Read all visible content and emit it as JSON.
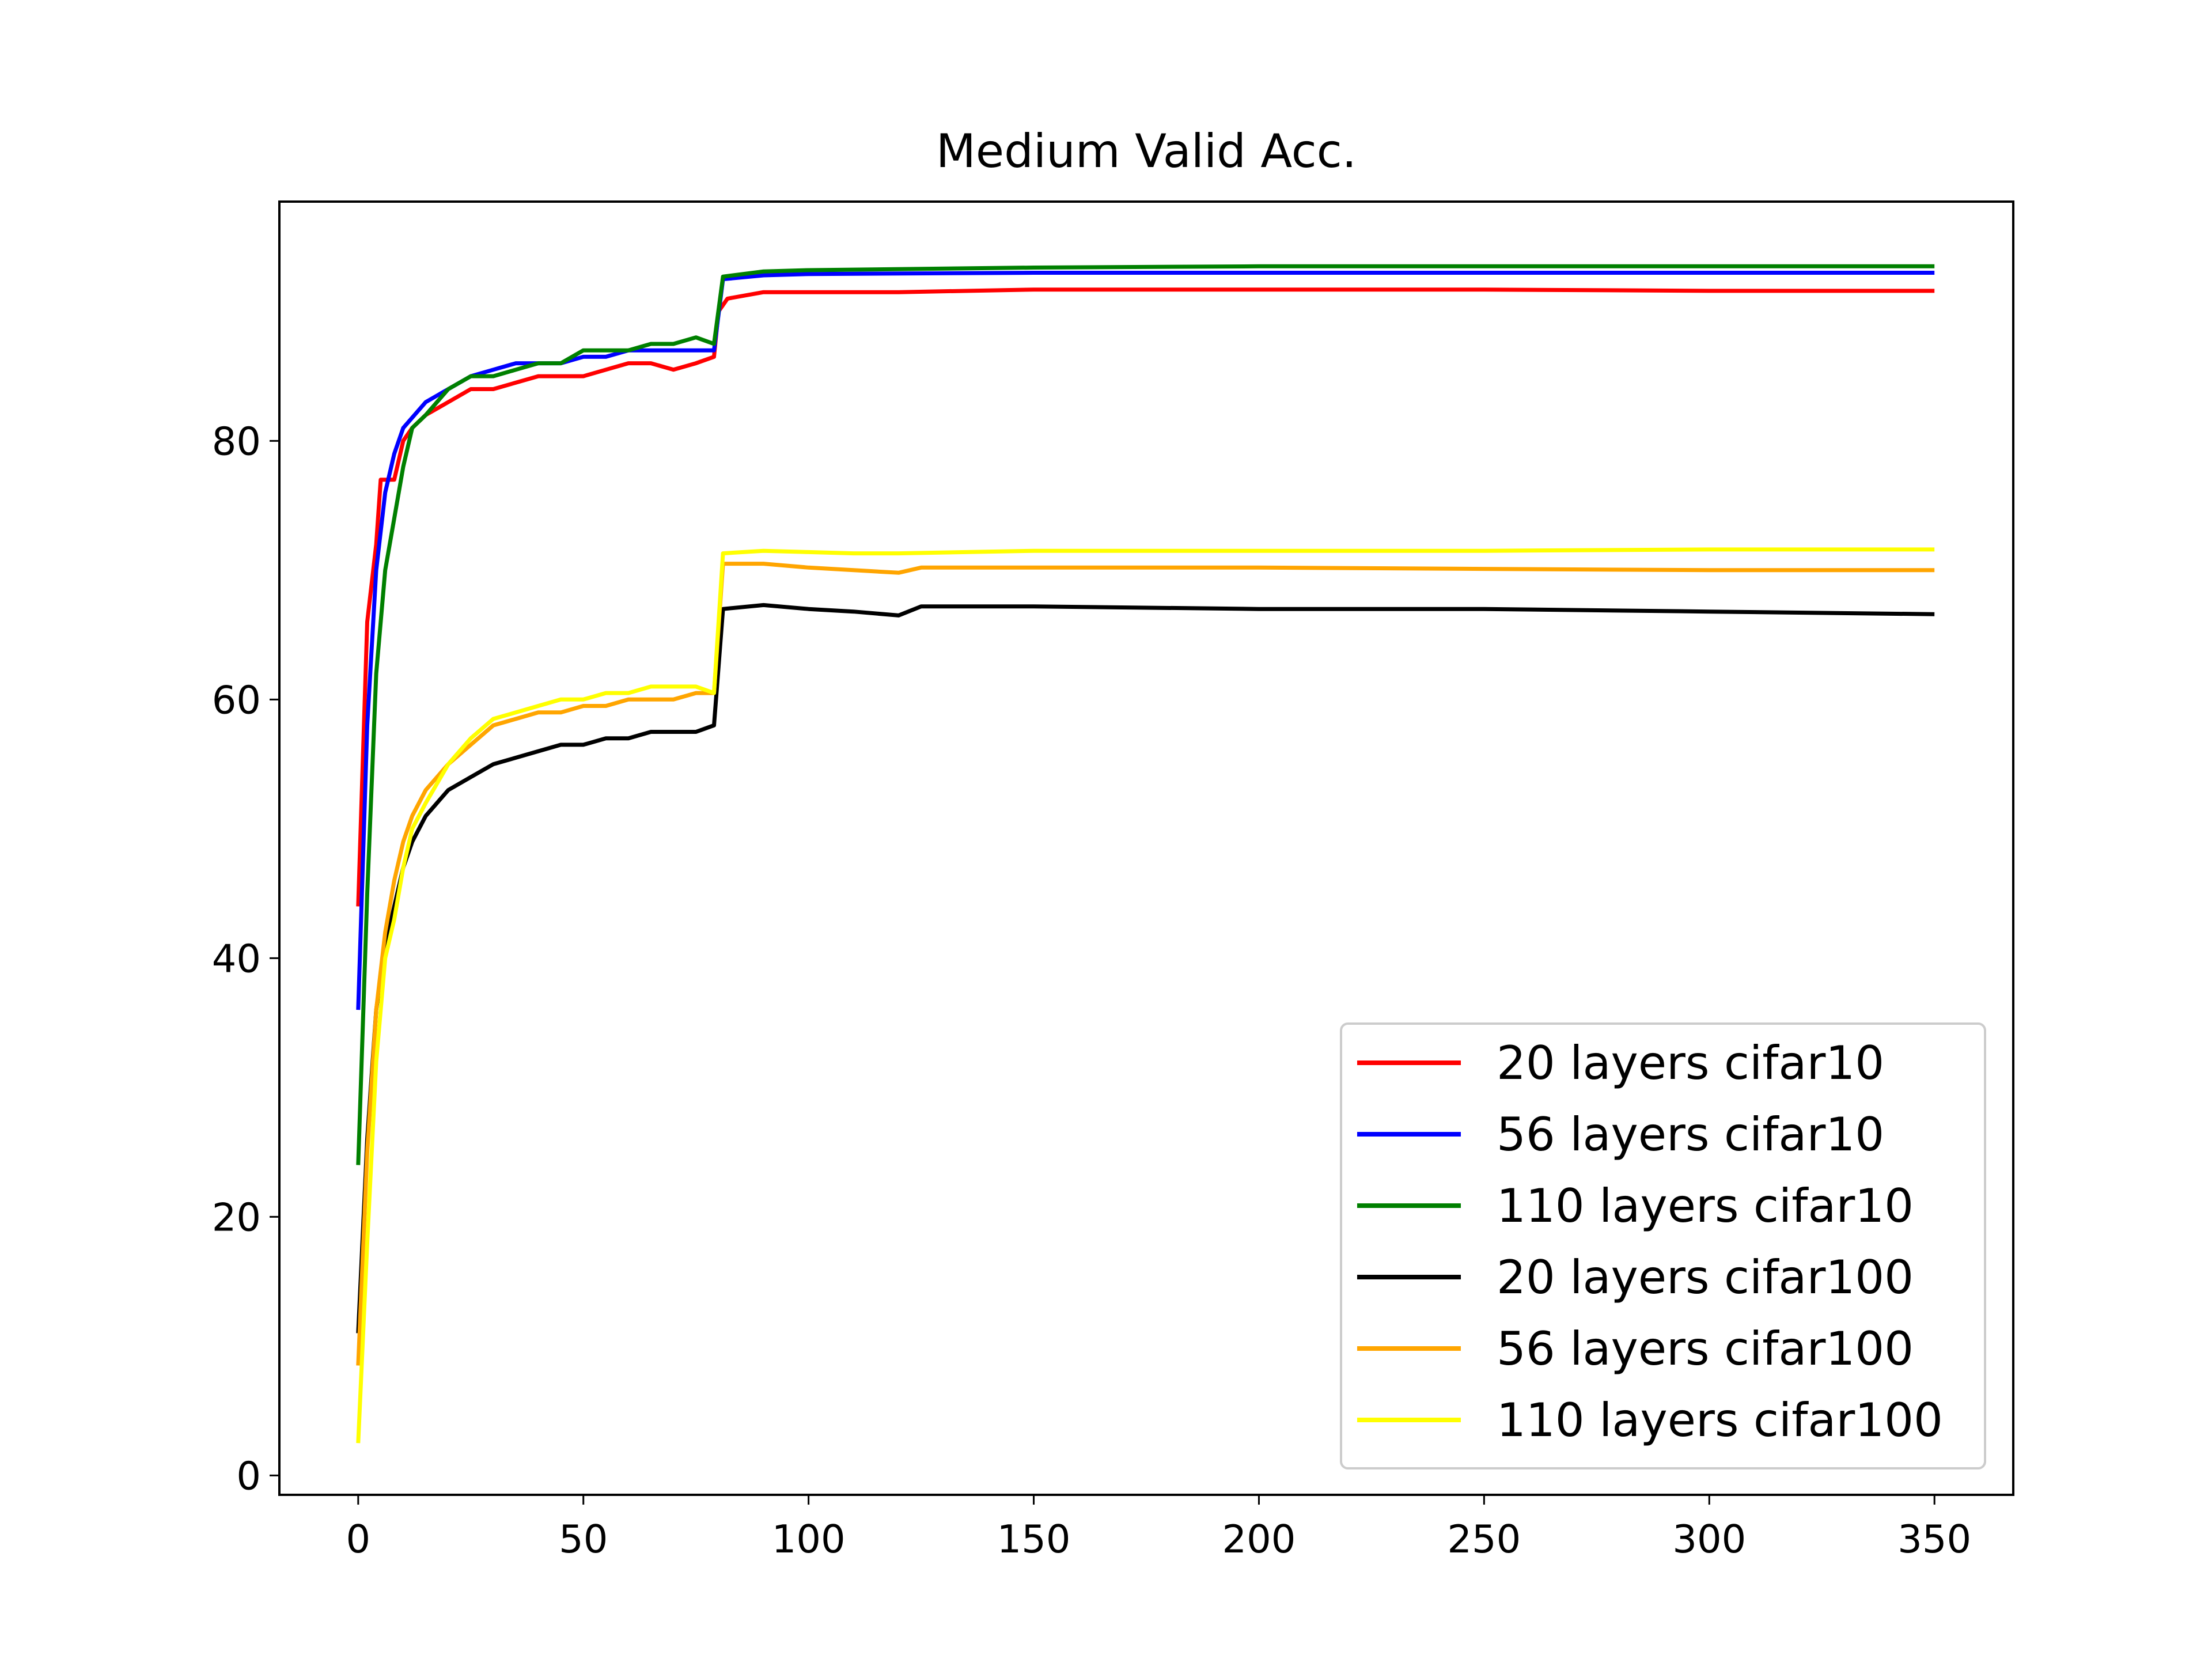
{
  "chart_data": {
    "type": "line",
    "title": "Medium Valid Acc.",
    "xlabel": "",
    "ylabel": "",
    "xlim": [
      -17.5,
      367.5
    ],
    "ylim": [
      -1.5,
      98.5
    ],
    "xticks": [
      0,
      50,
      100,
      150,
      200,
      250,
      300,
      350
    ],
    "yticks": [
      0,
      20,
      40,
      60,
      80
    ],
    "grid": false,
    "legend": {
      "position": "lower-right"
    },
    "series": [
      {
        "name": "20 layers cifar10",
        "color": "#ff0000",
        "points": [
          [
            0,
            44
          ],
          [
            2,
            66
          ],
          [
            4,
            72
          ],
          [
            5,
            77
          ],
          [
            8,
            77
          ],
          [
            10,
            80
          ],
          [
            12,
            81
          ],
          [
            15,
            82
          ],
          [
            20,
            83
          ],
          [
            25,
            84
          ],
          [
            30,
            84
          ],
          [
            35,
            84.5
          ],
          [
            40,
            85
          ],
          [
            45,
            85
          ],
          [
            50,
            85
          ],
          [
            55,
            85.5
          ],
          [
            60,
            86
          ],
          [
            65,
            86
          ],
          [
            70,
            85.5
          ],
          [
            75,
            86
          ],
          [
            79,
            86.5
          ],
          [
            80,
            90
          ],
          [
            82,
            91
          ],
          [
            90,
            91.5
          ],
          [
            100,
            91.5
          ],
          [
            110,
            91.5
          ],
          [
            120,
            91.5
          ],
          [
            150,
            91.7
          ],
          [
            200,
            91.7
          ],
          [
            250,
            91.7
          ],
          [
            300,
            91.6
          ],
          [
            350,
            91.6
          ]
        ]
      },
      {
        "name": "56 layers cifar10",
        "color": "#0000ff",
        "points": [
          [
            0,
            36
          ],
          [
            2,
            58
          ],
          [
            4,
            70
          ],
          [
            6,
            76
          ],
          [
            8,
            79
          ],
          [
            10,
            81
          ],
          [
            15,
            83
          ],
          [
            20,
            84
          ],
          [
            25,
            85
          ],
          [
            30,
            85.5
          ],
          [
            35,
            86
          ],
          [
            40,
            86
          ],
          [
            45,
            86
          ],
          [
            50,
            86.5
          ],
          [
            55,
            86.5
          ],
          [
            60,
            87
          ],
          [
            65,
            87
          ],
          [
            70,
            87
          ],
          [
            75,
            87
          ],
          [
            79,
            87
          ],
          [
            81,
            92.5
          ],
          [
            90,
            92.8
          ],
          [
            100,
            92.9
          ],
          [
            150,
            93
          ],
          [
            200,
            93
          ],
          [
            250,
            93
          ],
          [
            300,
            93
          ],
          [
            350,
            93
          ]
        ]
      },
      {
        "name": "110 layers cifar10",
        "color": "#008000",
        "points": [
          [
            0,
            24
          ],
          [
            2,
            45
          ],
          [
            4,
            62
          ],
          [
            6,
            70
          ],
          [
            8,
            74
          ],
          [
            10,
            78
          ],
          [
            12,
            81
          ],
          [
            15,
            82
          ],
          [
            20,
            84
          ],
          [
            25,
            85
          ],
          [
            30,
            85
          ],
          [
            35,
            85.5
          ],
          [
            40,
            86
          ],
          [
            45,
            86
          ],
          [
            50,
            87
          ],
          [
            55,
            87
          ],
          [
            60,
            87
          ],
          [
            65,
            87.5
          ],
          [
            70,
            87.5
          ],
          [
            75,
            88
          ],
          [
            79,
            87.5
          ],
          [
            81,
            92.7
          ],
          [
            90,
            93.1
          ],
          [
            100,
            93.2
          ],
          [
            150,
            93.4
          ],
          [
            200,
            93.5
          ],
          [
            250,
            93.5
          ],
          [
            300,
            93.5
          ],
          [
            350,
            93.5
          ]
        ]
      },
      {
        "name": "20 layers cifar100",
        "color": "#000000",
        "points": [
          [
            0,
            11
          ],
          [
            2,
            26
          ],
          [
            4,
            36
          ],
          [
            6,
            41
          ],
          [
            8,
            44
          ],
          [
            10,
            47
          ],
          [
            12,
            49
          ],
          [
            15,
            51
          ],
          [
            20,
            53
          ],
          [
            25,
            54
          ],
          [
            30,
            55
          ],
          [
            35,
            55.5
          ],
          [
            40,
            56
          ],
          [
            45,
            56.5
          ],
          [
            50,
            56.5
          ],
          [
            55,
            57
          ],
          [
            60,
            57
          ],
          [
            65,
            57.5
          ],
          [
            70,
            57.5
          ],
          [
            75,
            57.5
          ],
          [
            79,
            58
          ],
          [
            81,
            67
          ],
          [
            90,
            67.3
          ],
          [
            100,
            67
          ],
          [
            110,
            66.8
          ],
          [
            120,
            66.5
          ],
          [
            125,
            67.2
          ],
          [
            150,
            67.2
          ],
          [
            200,
            67
          ],
          [
            250,
            67
          ],
          [
            300,
            66.8
          ],
          [
            350,
            66.6
          ]
        ]
      },
      {
        "name": "56 layers cifar100",
        "color": "#ffa500",
        "points": [
          [
            0,
            8.5
          ],
          [
            2,
            25
          ],
          [
            4,
            36
          ],
          [
            6,
            42
          ],
          [
            8,
            46
          ],
          [
            10,
            49
          ],
          [
            12,
            51
          ],
          [
            15,
            53
          ],
          [
            20,
            55
          ],
          [
            25,
            56.5
          ],
          [
            30,
            58
          ],
          [
            35,
            58.5
          ],
          [
            40,
            59
          ],
          [
            45,
            59
          ],
          [
            50,
            59.5
          ],
          [
            55,
            59.5
          ],
          [
            60,
            60
          ],
          [
            65,
            60
          ],
          [
            70,
            60
          ],
          [
            75,
            60.5
          ],
          [
            79,
            60.5
          ],
          [
            81,
            70.5
          ],
          [
            90,
            70.5
          ],
          [
            100,
            70.2
          ],
          [
            110,
            70
          ],
          [
            120,
            69.8
          ],
          [
            125,
            70.2
          ],
          [
            150,
            70.2
          ],
          [
            200,
            70.2
          ],
          [
            250,
            70.1
          ],
          [
            300,
            70
          ],
          [
            350,
            70
          ]
        ]
      },
      {
        "name": "110 layers cifar100",
        "color": "#ffff00",
        "points": [
          [
            0,
            2.5
          ],
          [
            2,
            18
          ],
          [
            4,
            32
          ],
          [
            6,
            40
          ],
          [
            8,
            43
          ],
          [
            10,
            47
          ],
          [
            12,
            50
          ],
          [
            15,
            52
          ],
          [
            20,
            55
          ],
          [
            25,
            57
          ],
          [
            30,
            58.5
          ],
          [
            35,
            59
          ],
          [
            40,
            59.5
          ],
          [
            45,
            60
          ],
          [
            50,
            60
          ],
          [
            55,
            60.5
          ],
          [
            60,
            60.5
          ],
          [
            65,
            61
          ],
          [
            70,
            61
          ],
          [
            75,
            61
          ],
          [
            79,
            60.5
          ],
          [
            81,
            71.3
          ],
          [
            90,
            71.5
          ],
          [
            100,
            71.4
          ],
          [
            110,
            71.3
          ],
          [
            120,
            71.3
          ],
          [
            150,
            71.5
          ],
          [
            200,
            71.5
          ],
          [
            250,
            71.5
          ],
          [
            300,
            71.6
          ],
          [
            350,
            71.6
          ]
        ]
      }
    ]
  }
}
